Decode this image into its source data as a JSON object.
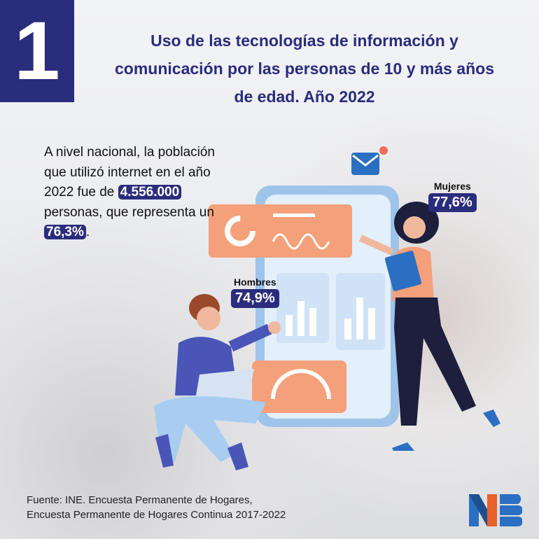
{
  "header": {
    "number": "1",
    "title": "Uso de las tecnologías de información y comunicación por las personas de 10 y más años de edad. Año 2022"
  },
  "summary": {
    "line1": "A nivel nacional, la población que utilizó internet en el año 2022 fue de",
    "users": "4.556.000",
    "line2": "personas, que representa un",
    "percent": "76,3%",
    "end": "."
  },
  "stats": {
    "women_label": "Mujeres",
    "women_value": "77,6%",
    "men_label": "Hombres",
    "men_value": "74,9%"
  },
  "footer": {
    "source_line1": "Fuente: INE. Encuesta Permanente de Hogares,",
    "source_line2": "Encuesta Permanente de Hogares Continua 2017-2022",
    "logo_text": "INE"
  },
  "colors": {
    "navy": "#2a2c7c",
    "orange": "#f4a07a",
    "blue": "#2b6fc2",
    "logo_orange": "#e8602c"
  }
}
